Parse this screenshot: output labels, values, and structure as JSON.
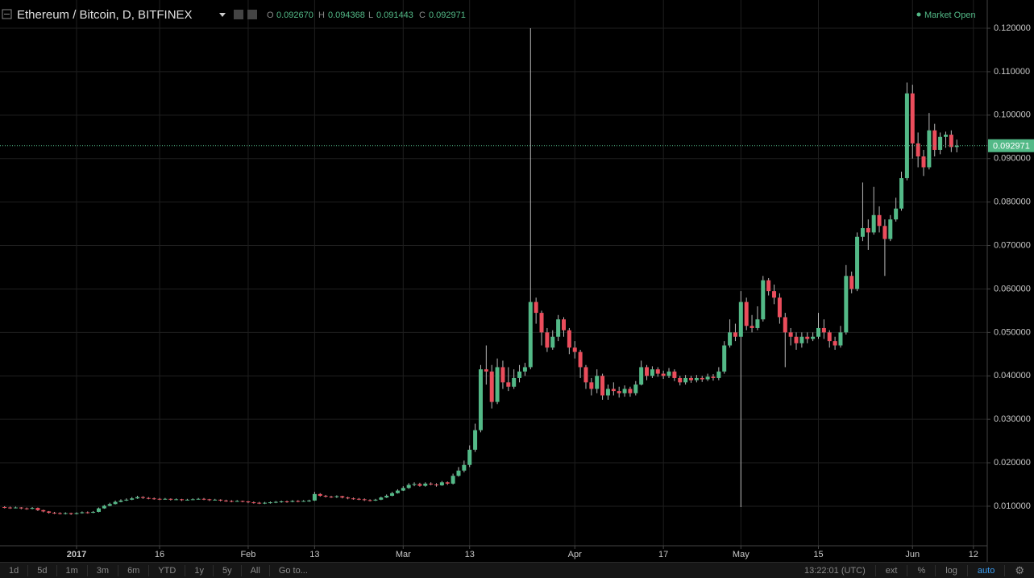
{
  "chart_data": {
    "type": "candlestick",
    "title": "Ethereum / Bitcoin, D, BITFINEX",
    "ohlc_labels": [
      "O",
      "H",
      "L",
      "C"
    ],
    "ohlc_values": [
      "0.092670",
      "0.094368",
      "0.091443",
      "0.092971"
    ],
    "status": "Market Open",
    "up_color": "#53b987",
    "down_color": "#eb4d5c",
    "grid": true,
    "xlim": [
      -0.83,
      177.5
    ],
    "xticks": [
      {
        "value": 13,
        "label": "2017"
      },
      {
        "value": 28,
        "label": "16"
      },
      {
        "value": 44,
        "label": "Feb"
      },
      {
        "value": 56,
        "label": "13"
      },
      {
        "value": 72,
        "label": "Mar"
      },
      {
        "value": 84,
        "label": "13"
      },
      {
        "value": 103,
        "label": "Apr"
      },
      {
        "value": 119,
        "label": "17"
      },
      {
        "value": 133,
        "label": "May"
      },
      {
        "value": 147,
        "label": "15"
      },
      {
        "value": 164,
        "label": "Jun"
      },
      {
        "value": 175,
        "label": "12"
      }
    ],
    "ylim": [
      0.0009,
      0.1265
    ],
    "yticks": [
      {
        "value": 0.01,
        "label": "0.010000"
      },
      {
        "value": 0.02,
        "label": "0.020000"
      },
      {
        "value": 0.03,
        "label": "0.030000"
      },
      {
        "value": 0.04,
        "label": "0.040000"
      },
      {
        "value": 0.05,
        "label": "0.050000"
      },
      {
        "value": 0.06,
        "label": "0.060000"
      },
      {
        "value": 0.07,
        "label": "0.070000"
      },
      {
        "value": 0.08,
        "label": "0.080000"
      },
      {
        "value": 0.09,
        "label": "0.090000"
      },
      {
        "value": 0.1,
        "label": "0.100000"
      },
      {
        "value": 0.11,
        "label": "0.110000"
      },
      {
        "value": 0.12,
        "label": "0.120000"
      }
    ],
    "last_price": {
      "value": 0.092971,
      "label": "0.092971"
    },
    "open": [
      0.0098,
      0.0097,
      0.0096,
      0.0097,
      0.0095,
      0.0094,
      0.0096,
      0.0091,
      0.0088,
      0.0085,
      0.0084,
      0.0083,
      0.0084,
      0.0082,
      0.0084,
      0.0086,
      0.0085,
      0.0087,
      0.0095,
      0.0101,
      0.0105,
      0.011,
      0.0113,
      0.0115,
      0.0118,
      0.0121,
      0.0119,
      0.0118,
      0.0117,
      0.0116,
      0.0117,
      0.0115,
      0.0116,
      0.0114,
      0.0115,
      0.0116,
      0.0117,
      0.0116,
      0.0114,
      0.0115,
      0.0113,
      0.0112,
      0.0111,
      0.0112,
      0.0111,
      0.0109,
      0.0108,
      0.0107,
      0.0108,
      0.0109,
      0.011,
      0.0111,
      0.011,
      0.0112,
      0.0111,
      0.0112,
      0.0113,
      0.0128,
      0.0124,
      0.0122,
      0.0121,
      0.0123,
      0.012,
      0.0118,
      0.0117,
      0.0116,
      0.0114,
      0.0113,
      0.0115,
      0.012,
      0.0124,
      0.013,
      0.0136,
      0.0142,
      0.0149,
      0.0151,
      0.0147,
      0.0152,
      0.015,
      0.0148,
      0.0155,
      0.0152,
      0.017,
      0.0182,
      0.0195,
      0.023,
      0.0275,
      0.0415,
      0.041,
      0.034,
      0.042,
      0.0385,
      0.0375,
      0.0395,
      0.041,
      0.042,
      0.057,
      0.0545,
      0.05,
      0.0465,
      0.049,
      0.053,
      0.0505,
      0.0465,
      0.0455,
      0.042,
      0.0385,
      0.037,
      0.04,
      0.0355,
      0.037,
      0.0365,
      0.036,
      0.037,
      0.036,
      0.038,
      0.042,
      0.04,
      0.0415,
      0.0405,
      0.04,
      0.041,
      0.0395,
      0.0385,
      0.0395,
      0.039,
      0.0395,
      0.0392,
      0.0398,
      0.0395,
      0.041,
      0.047,
      0.05,
      0.049,
      0.057,
      0.0515,
      0.051,
      0.053,
      0.062,
      0.0595,
      0.058,
      0.0535,
      0.05,
      0.049,
      0.0475,
      0.049,
      0.0485,
      0.049,
      0.051,
      0.05,
      0.048,
      0.047,
      0.05,
      0.063,
      0.06,
      0.072,
      0.074,
      0.073,
      0.077,
      0.0745,
      0.0715,
      0.076,
      0.0785,
      0.0855,
      0.105,
      0.0935,
      0.0905,
      0.088,
      0.0965,
      0.092,
      0.095,
      0.0955,
      0.09267
    ],
    "high": [
      0.01,
      0.0099,
      0.0099,
      0.0098,
      0.0097,
      0.0098,
      0.0097,
      0.0092,
      0.0089,
      0.0087,
      0.0086,
      0.0086,
      0.0085,
      0.0086,
      0.0088,
      0.0088,
      0.0089,
      0.0097,
      0.0103,
      0.0108,
      0.0113,
      0.0116,
      0.0118,
      0.0121,
      0.0124,
      0.0123,
      0.0121,
      0.012,
      0.0119,
      0.0119,
      0.0118,
      0.0118,
      0.0117,
      0.0117,
      0.0118,
      0.0119,
      0.0119,
      0.0117,
      0.0117,
      0.0116,
      0.0115,
      0.0114,
      0.0114,
      0.0113,
      0.0112,
      0.0111,
      0.011,
      0.011,
      0.0111,
      0.0112,
      0.0113,
      0.0113,
      0.0114,
      0.0114,
      0.0114,
      0.0115,
      0.0133,
      0.013,
      0.0126,
      0.0124,
      0.0125,
      0.0124,
      0.0122,
      0.012,
      0.0119,
      0.0118,
      0.0116,
      0.0117,
      0.0122,
      0.0127,
      0.0133,
      0.0139,
      0.0146,
      0.0153,
      0.0155,
      0.0154,
      0.0155,
      0.0155,
      0.0153,
      0.0158,
      0.0157,
      0.0175,
      0.019,
      0.0205,
      0.024,
      0.029,
      0.0425,
      0.047,
      0.0425,
      0.044,
      0.0435,
      0.042,
      0.0415,
      0.0425,
      0.043,
      0.12,
      0.058,
      0.055,
      0.051,
      0.0505,
      0.054,
      0.0535,
      0.051,
      0.048,
      0.046,
      0.0425,
      0.0395,
      0.0415,
      0.0405,
      0.038,
      0.0385,
      0.0375,
      0.0378,
      0.0375,
      0.0388,
      0.0435,
      0.0425,
      0.0422,
      0.042,
      0.0412,
      0.0418,
      0.0415,
      0.04,
      0.0402,
      0.04,
      0.0402,
      0.04,
      0.0405,
      0.0404,
      0.042,
      0.048,
      0.053,
      0.052,
      0.0595,
      0.058,
      0.054,
      0.056,
      0.063,
      0.0625,
      0.061,
      0.059,
      0.0545,
      0.051,
      0.05,
      0.05,
      0.05,
      0.05,
      0.0545,
      0.053,
      0.0505,
      0.049,
      0.0515,
      0.0655,
      0.064,
      0.073,
      0.0845,
      0.076,
      0.0835,
      0.079,
      0.076,
      0.077,
      0.081,
      0.087,
      0.1075,
      0.107,
      0.096,
      0.092,
      0.1005,
      0.098,
      0.096,
      0.0962,
      0.0965,
      0.094368
    ],
    "low": [
      0.0095,
      0.0094,
      0.0095,
      0.0093,
      0.0092,
      0.0093,
      0.0089,
      0.0086,
      0.0083,
      0.0082,
      0.0081,
      0.0081,
      0.008,
      0.0081,
      0.0083,
      0.0083,
      0.0084,
      0.0086,
      0.0094,
      0.01,
      0.0104,
      0.0109,
      0.0112,
      0.0114,
      0.0117,
      0.0117,
      0.0116,
      0.0115,
      0.0114,
      0.0115,
      0.0113,
      0.0114,
      0.0112,
      0.0113,
      0.0114,
      0.0115,
      0.0114,
      0.0112,
      0.0113,
      0.0111,
      0.011,
      0.0109,
      0.011,
      0.0109,
      0.0107,
      0.0106,
      0.0105,
      0.0105,
      0.0106,
      0.0107,
      0.0108,
      0.0108,
      0.0109,
      0.0109,
      0.011,
      0.011,
      0.0112,
      0.0122,
      0.012,
      0.0119,
      0.0119,
      0.0118,
      0.0116,
      0.0115,
      0.0114,
      0.0112,
      0.0111,
      0.0112,
      0.0114,
      0.0119,
      0.0123,
      0.0129,
      0.0135,
      0.014,
      0.0146,
      0.0145,
      0.0145,
      0.0148,
      0.0145,
      0.0147,
      0.0149,
      0.015,
      0.0168,
      0.0178,
      0.019,
      0.0225,
      0.027,
      0.038,
      0.0325,
      0.0335,
      0.037,
      0.0365,
      0.037,
      0.0385,
      0.04,
      0.0415,
      0.052,
      0.047,
      0.0455,
      0.046,
      0.048,
      0.049,
      0.045,
      0.044,
      0.0395,
      0.037,
      0.0355,
      0.036,
      0.0345,
      0.0345,
      0.0355,
      0.035,
      0.0352,
      0.0352,
      0.0355,
      0.0378,
      0.039,
      0.0395,
      0.0398,
      0.0393,
      0.0395,
      0.0388,
      0.0378,
      0.038,
      0.0384,
      0.0385,
      0.0386,
      0.0388,
      0.0389,
      0.039,
      0.0405,
      0.0465,
      0.048,
      0.0098,
      0.0505,
      0.05,
      0.0505,
      0.0525,
      0.0585,
      0.0565,
      0.052,
      0.042,
      0.047,
      0.046,
      0.0465,
      0.0475,
      0.048,
      0.0485,
      0.0485,
      0.0465,
      0.046,
      0.0465,
      0.0495,
      0.059,
      0.0595,
      0.071,
      0.069,
      0.0725,
      0.073,
      0.063,
      0.071,
      0.0755,
      0.078,
      0.085,
      0.09,
      0.088,
      0.086,
      0.0875,
      0.0905,
      0.091,
      0.0925,
      0.0915,
      0.091443
    ],
    "close": [
      0.0097,
      0.0096,
      0.0097,
      0.0095,
      0.0094,
      0.0096,
      0.0091,
      0.0088,
      0.0085,
      0.0084,
      0.0083,
      0.0084,
      0.0082,
      0.0084,
      0.0086,
      0.0085,
      0.0087,
      0.0095,
      0.0101,
      0.0105,
      0.011,
      0.0113,
      0.0115,
      0.0118,
      0.0121,
      0.0119,
      0.0118,
      0.0117,
      0.0116,
      0.0117,
      0.0115,
      0.0116,
      0.0114,
      0.0115,
      0.0116,
      0.0117,
      0.0116,
      0.0114,
      0.0115,
      0.0113,
      0.0112,
      0.0111,
      0.0112,
      0.0111,
      0.0109,
      0.0108,
      0.0107,
      0.0108,
      0.0109,
      0.011,
      0.0111,
      0.011,
      0.0112,
      0.0111,
      0.0112,
      0.0113,
      0.0128,
      0.0124,
      0.0122,
      0.0121,
      0.0123,
      0.012,
      0.0118,
      0.0117,
      0.0116,
      0.0114,
      0.0113,
      0.0115,
      0.012,
      0.0124,
      0.013,
      0.0136,
      0.0142,
      0.0149,
      0.0151,
      0.0147,
      0.0152,
      0.015,
      0.0148,
      0.0155,
      0.0152,
      0.017,
      0.0182,
      0.0195,
      0.023,
      0.0275,
      0.0415,
      0.041,
      0.034,
      0.042,
      0.0385,
      0.0375,
      0.0395,
      0.041,
      0.042,
      0.057,
      0.0545,
      0.05,
      0.0465,
      0.049,
      0.053,
      0.0505,
      0.0465,
      0.0455,
      0.042,
      0.0385,
      0.037,
      0.04,
      0.0355,
      0.037,
      0.0365,
      0.036,
      0.037,
      0.036,
      0.038,
      0.042,
      0.04,
      0.0415,
      0.0405,
      0.04,
      0.041,
      0.0395,
      0.0385,
      0.0395,
      0.039,
      0.0395,
      0.0392,
      0.0398,
      0.0395,
      0.041,
      0.047,
      0.05,
      0.049,
      0.057,
      0.0515,
      0.051,
      0.053,
      0.062,
      0.0595,
      0.058,
      0.0535,
      0.05,
      0.049,
      0.0475,
      0.049,
      0.0485,
      0.049,
      0.051,
      0.05,
      0.048,
      0.047,
      0.05,
      0.063,
      0.06,
      0.072,
      0.074,
      0.073,
      0.077,
      0.0745,
      0.0715,
      0.076,
      0.0785,
      0.0855,
      0.105,
      0.0935,
      0.0905,
      0.088,
      0.0965,
      0.092,
      0.095,
      0.0955,
      0.09267,
      0.092971
    ]
  },
  "toolbar": {
    "ranges": [
      "1d",
      "5d",
      "1m",
      "3m",
      "6m",
      "YTD",
      "1y",
      "5y",
      "All"
    ],
    "goto": "Go to...",
    "time": "13:22:01 (UTC)",
    "options": [
      "ext",
      "%",
      "log",
      "auto"
    ]
  }
}
